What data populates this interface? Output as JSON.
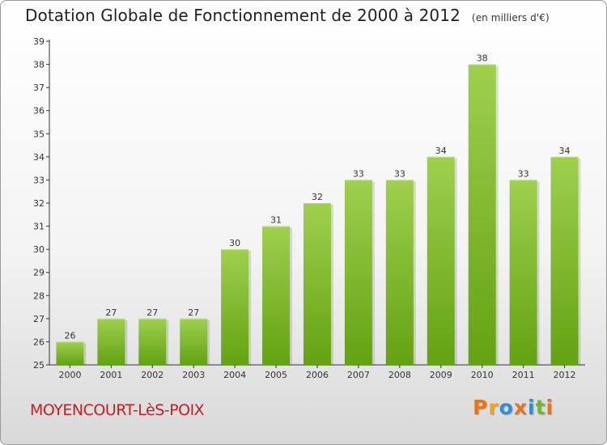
{
  "colors": {
    "bar_top": "#9fd04e",
    "bar_bottom": "#63a212",
    "axis": "#333333",
    "logo": [
      "#e8741e",
      "#f2a31b",
      "#2e8fd6",
      "#e8741e",
      "#2e8fd6",
      "#74b72e",
      "#e8741e"
    ]
  },
  "title": "Dotation Globale de Fonctionnement de 2000 à 2012",
  "subtitle": "(en milliers d'€)",
  "commune": "MOYENCOURT-LèS-POIX",
  "logo_text": "Proxiti",
  "chart_data": {
    "type": "bar",
    "title": "Dotation Globale de Fonctionnement de 2000 à 2012",
    "subtitle": "(en milliers d'€)",
    "xlabel": "",
    "ylabel": "",
    "categories": [
      "2000",
      "2001",
      "2002",
      "2003",
      "2004",
      "2005",
      "2006",
      "2007",
      "2008",
      "2009",
      "2010",
      "2011",
      "2012"
    ],
    "values": [
      26,
      27,
      27,
      27,
      30,
      31,
      32,
      33,
      33,
      34,
      38,
      33,
      34
    ],
    "ylim": [
      25,
      39
    ],
    "yticks": [
      25,
      26,
      27,
      28,
      29,
      30,
      31,
      32,
      33,
      34,
      35,
      36,
      37,
      38,
      39
    ],
    "grid": false,
    "legend": "none"
  }
}
